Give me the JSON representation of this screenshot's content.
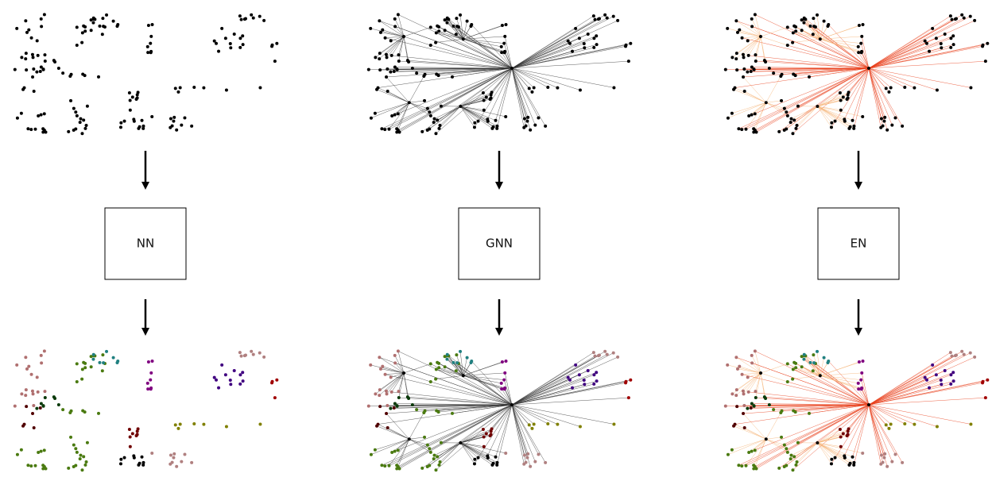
{
  "blocks": [
    {
      "label": "NN"
    },
    {
      "label": "GNN"
    },
    {
      "label": "EN"
    }
  ]
}
